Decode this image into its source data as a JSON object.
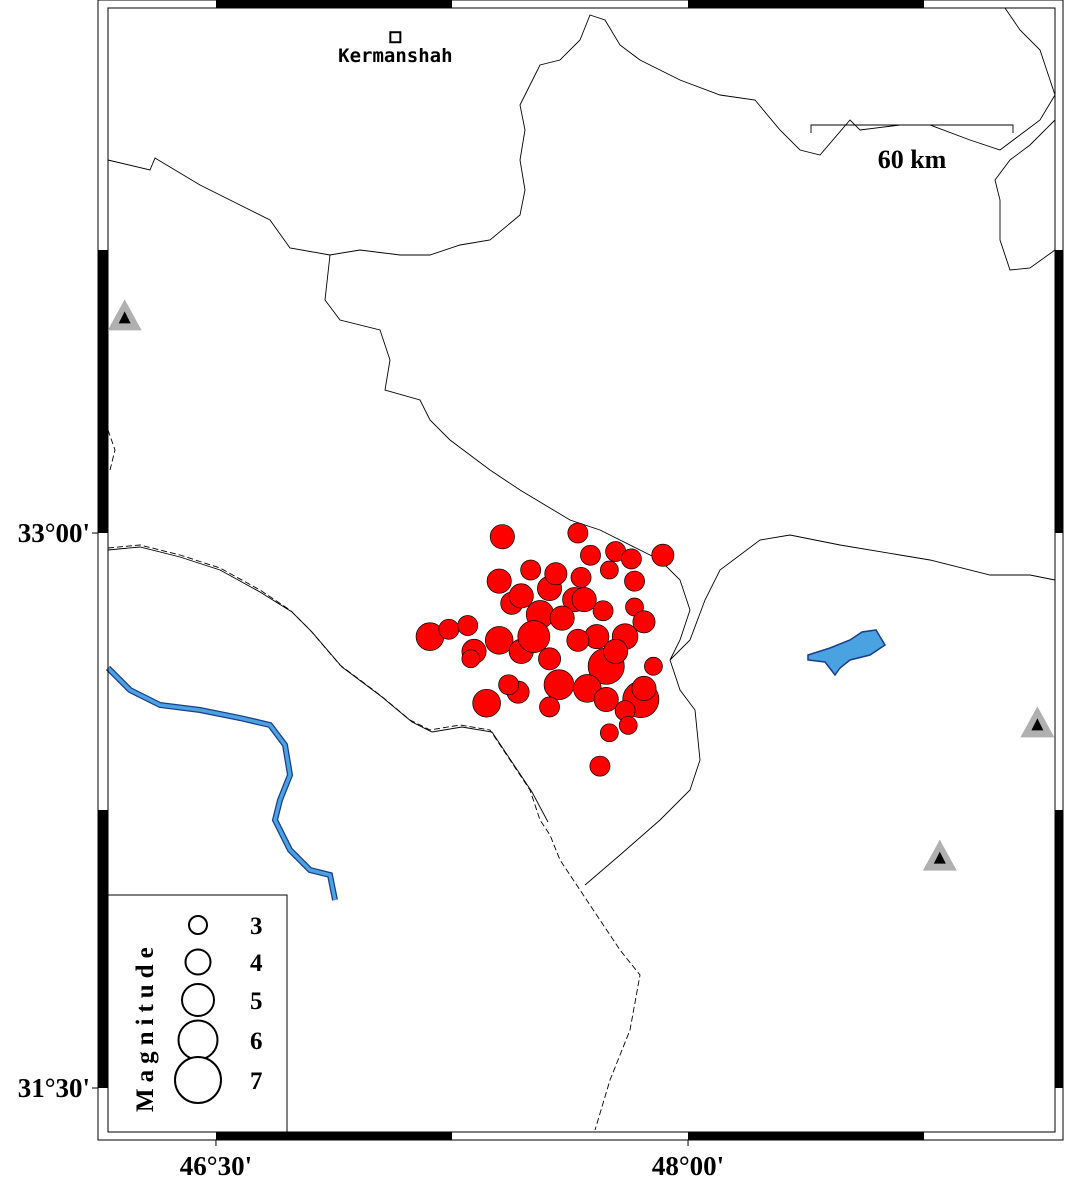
{
  "map": {
    "xlim": [
      46.157,
      49.166
    ],
    "ylim": [
      31.373,
      34.419
    ],
    "xticks": [
      {
        "value": 46.5,
        "label": "46°30'"
      },
      {
        "value": 48,
        "label": "48°00'"
      }
    ],
    "yticks": [
      {
        "value": 33,
        "label": "33°00'"
      },
      {
        "value": 31.5,
        "label": "31°30'"
      }
    ],
    "place": {
      "name": "Kermanshah",
      "lon": 47.07,
      "lat": 34.34
    },
    "scale_bar": "60 km",
    "events": {
      "color": "#ff0000",
      "lon": [
        47.41,
        47.65,
        47.69,
        47.77,
        47.82,
        47.92,
        47.5,
        47.4,
        47.66,
        47.75,
        47.83,
        47.56,
        47.64,
        47.73,
        47.83,
        47.44,
        47.53,
        47.6,
        47.71,
        47.8,
        47.86,
        47.18,
        47.24,
        47.3,
        47.32,
        47.4,
        47.47,
        47.56,
        47.65,
        47.74,
        47.85,
        47.59,
        47.68,
        47.36,
        47.46,
        47.56,
        47.74,
        47.8,
        47.81,
        47.75,
        47.72,
        47.89,
        47.31,
        47.51,
        47.47,
        47.58,
        47.67,
        47.77,
        47.86,
        47.43
      ],
      "lat": [
        32.99,
        33.0,
        32.94,
        32.95,
        32.93,
        32.94,
        32.9,
        32.87,
        32.88,
        32.9,
        32.87,
        32.85,
        32.82,
        32.79,
        32.8,
        32.81,
        32.78,
        32.77,
        32.72,
        32.72,
        32.76,
        32.72,
        32.74,
        32.75,
        32.68,
        32.71,
        32.68,
        32.66,
        32.71,
        32.64,
        32.55,
        32.59,
        32.58,
        32.54,
        32.57,
        32.53,
        32.55,
        32.52,
        32.48,
        32.46,
        32.37,
        32.64,
        32.66,
        32.72,
        32.83,
        32.89,
        32.82,
        32.68,
        32.58,
        32.59
      ],
      "magnitude": [
        3.9,
        3.3,
        3.3,
        3.3,
        3.3,
        3.6,
        3.3,
        3.9,
        3.3,
        3.0,
        3.3,
        3.9,
        3.9,
        3.3,
        3.0,
        3.6,
        4.4,
        3.9,
        3.9,
        4.1,
        3.6,
        4.4,
        3.3,
        3.3,
        3.9,
        4.4,
        3.9,
        3.6,
        3.6,
        5.6,
        5.6,
        4.7,
        4.4,
        4.4,
        3.6,
        3.3,
        3.9,
        3.3,
        3.0,
        3.0,
        3.3,
        3.0,
        3.0,
        5.0,
        3.9,
        3.6,
        3.9,
        3.9,
        3.9,
        3.3
      ]
    },
    "stations": {
      "lon": [
        46.21,
        49.11,
        48.8
      ],
      "lat": [
        33.58,
        32.48,
        32.12
      ]
    },
    "legend": {
      "title": "Magnitude",
      "magnitudes": [
        3,
        4,
        5,
        6,
        7
      ]
    }
  }
}
